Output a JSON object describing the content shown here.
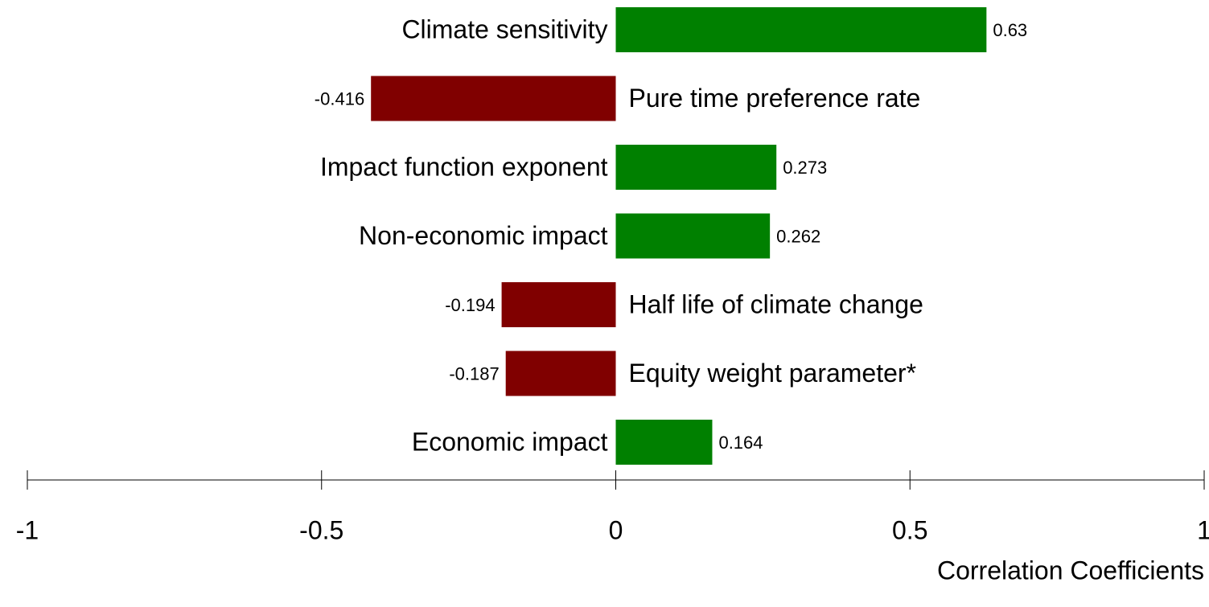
{
  "chart_data": {
    "type": "bar",
    "orientation": "horizontal",
    "categories": [
      "Climate sensitivity",
      "Pure time preference rate",
      "Impact function exponent",
      "Non-economic impact",
      "Half life of climate change",
      "Equity weight parameter*",
      "Economic impact"
    ],
    "values": [
      0.63,
      -0.416,
      0.273,
      0.262,
      -0.194,
      -0.187,
      0.164
    ],
    "colors": [
      "#008000",
      "#800000",
      "#008000",
      "#008000",
      "#800000",
      "#800000",
      "#008000"
    ],
    "xlim": [
      -1,
      1
    ],
    "xticks": [
      -1,
      -0.5,
      0,
      0.5,
      1
    ],
    "xlabel": "Correlation Coefficients"
  }
}
